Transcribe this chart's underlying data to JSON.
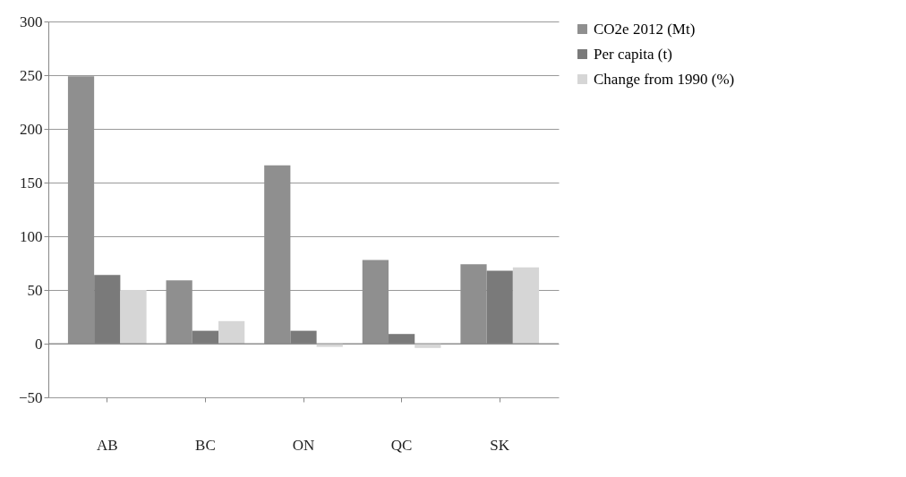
{
  "chart_data": {
    "type": "bar",
    "categories": [
      "AB",
      "BC",
      "ON",
      "QC",
      "SK"
    ],
    "series": [
      {
        "name": "CO2e 2012 (Mt)",
        "color": "#8f8f8f",
        "values": [
          249,
          59,
          166,
          78,
          74
        ]
      },
      {
        "name": "Per capita (t)",
        "color": "#7a7a7a",
        "values": [
          64,
          12,
          12,
          9,
          68
        ]
      },
      {
        "name": "Change from 1990 (%)",
        "color": "#d6d6d6",
        "values": [
          50,
          21,
          -3,
          -4,
          71
        ]
      }
    ],
    "ylim": [
      -50,
      300
    ],
    "yticks": [
      -50,
      0,
      50,
      100,
      150,
      200,
      250,
      300
    ],
    "grid": "y",
    "legend": "right"
  }
}
